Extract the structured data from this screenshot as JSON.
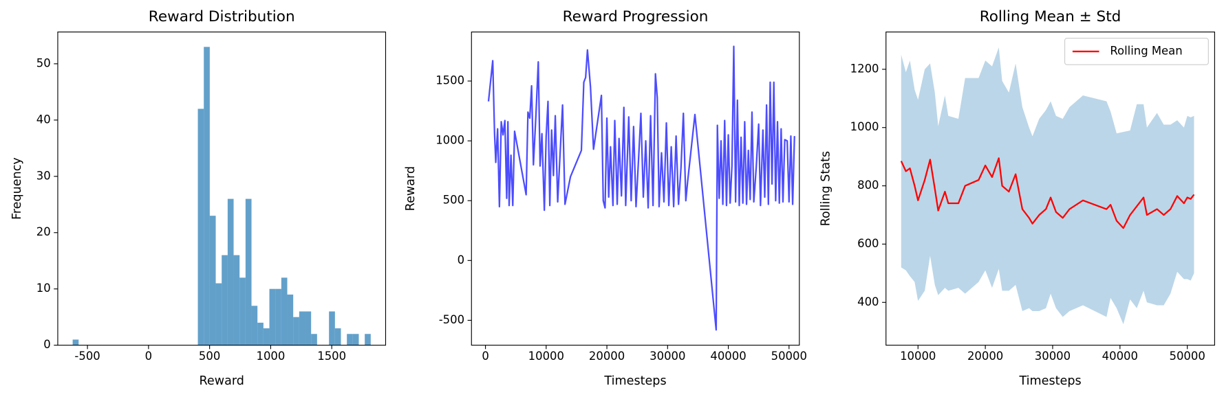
{
  "chart_data": [
    {
      "type": "histogram",
      "title": "Reward Distribution",
      "xlabel": "Reward",
      "ylabel": "Frequency",
      "color": "#1f77b4",
      "bins": [
        -621,
        -572.2,
        -523.4,
        -474.6,
        -425.8,
        -377,
        -328.2,
        -279.4,
        -230.6,
        -181.8,
        -133,
        -84.2,
        -35.4,
        13.4,
        62.2,
        111,
        159.8,
        208.6,
        257.4,
        306.2,
        355,
        403.8,
        452.6,
        501.4,
        550.2,
        599,
        647.8,
        696.6,
        745.4,
        794.2,
        843,
        891.8,
        940.6,
        989.4,
        1038.2,
        1087,
        1135.8,
        1184.6,
        1233.4,
        1282.2,
        1331,
        1379.8,
        1428.6,
        1477.4,
        1526.2,
        1575,
        1623.8,
        1672.6,
        1721.4,
        1770.2,
        1819
      ],
      "values": [
        1,
        0,
        0,
        0,
        0,
        0,
        0,
        0,
        0,
        0,
        0,
        0,
        0,
        0,
        0,
        0,
        0,
        0,
        0,
        0,
        0,
        42,
        53,
        23,
        11,
        16,
        26,
        16,
        12,
        26,
        7,
        4,
        3,
        10,
        10,
        12,
        9,
        5,
        6,
        6,
        2,
        0,
        0,
        6,
        3,
        0,
        2,
        2,
        0,
        2
      ],
      "xlim": [
        -743,
        1941
      ],
      "xticks": [
        -500,
        0,
        500,
        1000,
        1500
      ],
      "ylim": [
        0,
        55.65
      ],
      "yticks": [
        0,
        10,
        20,
        30,
        40,
        50
      ]
    },
    {
      "type": "line",
      "title": "Reward Progression",
      "xlabel": "Timesteps",
      "ylabel": "Reward",
      "color": "#0000ff",
      "x": [
        500,
        1200,
        1500,
        1700,
        2000,
        2300,
        2600,
        2900,
        3200,
        3500,
        3700,
        3900,
        4200,
        4500,
        4800,
        6700,
        7000,
        7300,
        7600,
        7900,
        8300,
        8700,
        9000,
        9300,
        9700,
        10000,
        10300,
        10600,
        10900,
        11200,
        11500,
        11900,
        12300,
        12700,
        13100,
        14000,
        15800,
        16200,
        16500,
        16800,
        17300,
        17800,
        19100,
        19400,
        19700,
        20000,
        20300,
        20600,
        21000,
        21300,
        21700,
        22000,
        22400,
        22800,
        23100,
        23600,
        24000,
        24400,
        24800,
        25200,
        25600,
        26000,
        26400,
        26800,
        27200,
        27600,
        28000,
        28300,
        28600,
        29000,
        29400,
        29800,
        30200,
        30600,
        31000,
        31400,
        31800,
        32200,
        32600,
        33000,
        33300,
        34500,
        38000,
        38200,
        38500,
        38800,
        39100,
        39400,
        39700,
        40000,
        40300,
        40600,
        40900,
        41200,
        41500,
        41800,
        42100,
        42400,
        42700,
        43000,
        43300,
        43600,
        43900,
        44200,
        44600,
        45000,
        45300,
        45700,
        46000,
        46300,
        46600,
        46900,
        47200,
        47500,
        47800,
        48100,
        48400,
        48700,
        49000,
        49300,
        49700,
        50000,
        50300,
        50600,
        50900
      ],
      "values": [
        1330,
        1670,
        1060,
        820,
        1100,
        450,
        1160,
        1050,
        1170,
        520,
        1160,
        460,
        880,
        460,
        1080,
        550,
        1240,
        1190,
        1460,
        800,
        1200,
        1660,
        790,
        1060,
        420,
        1040,
        1330,
        460,
        1090,
        710,
        1210,
        490,
        900,
        1300,
        470,
        700,
        920,
        1490,
        1530,
        1760,
        1450,
        930,
        1380,
        500,
        440,
        1190,
        530,
        950,
        460,
        1170,
        470,
        1020,
        540,
        1280,
        460,
        1200,
        500,
        1120,
        450,
        830,
        1230,
        530,
        1000,
        440,
        1210,
        460,
        1560,
        1360,
        450,
        900,
        490,
        1150,
        460,
        950,
        450,
        1040,
        470,
        770,
        1230,
        500,
        660,
        1220,
        -580,
        1130,
        520,
        1000,
        470,
        1170,
        460,
        1050,
        480,
        790,
        1790,
        490,
        1340,
        460,
        1030,
        480,
        1160,
        470,
        920,
        510,
        1240,
        490,
        780,
        1140,
        460,
        1090,
        530,
        1300,
        470,
        1490,
        640,
        1490,
        500,
        1160,
        480,
        1100,
        490,
        1010,
        1000,
        490,
        1040,
        470,
        1040
      ],
      "xlim": [
        -2300,
        51700
      ],
      "xticks": [
        0,
        10000,
        20000,
        30000,
        40000,
        50000
      ],
      "ylim": [
        -708,
        1910
      ],
      "yticks": [
        -500,
        0,
        500,
        1000,
        1500
      ]
    },
    {
      "type": "line",
      "title": "Rolling Mean ± Std",
      "xlabel": "Timesteps",
      "ylabel": "Rolling Stats",
      "legend": "upper right",
      "x": [
        7500,
        8200,
        8800,
        9500,
        10000,
        11000,
        11800,
        12500,
        13000,
        14000,
        14500,
        16000,
        17000,
        19000,
        20000,
        21000,
        22000,
        22500,
        23500,
        24500,
        25500,
        26500,
        27000,
        28000,
        29000,
        29700,
        30500,
        31500,
        32500,
        34500,
        38000,
        38600,
        39500,
        40500,
        41500,
        42500,
        43500,
        44000,
        45500,
        46500,
        47500,
        48500,
        49500,
        50000,
        50500,
        51000
      ],
      "series": [
        {
          "name": "Rolling Mean",
          "color": "#ff0000",
          "std_color": "#1f77b4",
          "values": [
            885,
            850,
            860,
            800,
            750,
            820,
            890,
            790,
            715,
            780,
            740,
            740,
            800,
            820,
            870,
            830,
            895,
            800,
            780,
            840,
            720,
            690,
            670,
            700,
            720,
            760,
            710,
            690,
            720,
            750,
            720,
            735,
            680,
            655,
            700,
            730,
            760,
            700,
            720,
            700,
            720,
            765,
            740,
            760,
            755,
            770
          ],
          "std": [
            365,
            340,
            370,
            330,
            345,
            380,
            330,
            330,
            290,
            330,
            300,
            290,
            370,
            350,
            360,
            380,
            380,
            360,
            340,
            380,
            350,
            310,
            300,
            330,
            340,
            330,
            330,
            340,
            350,
            360,
            370,
            320,
            300,
            330,
            290,
            350,
            320,
            300,
            330,
            310,
            290,
            260,
            260,
            280,
            280,
            270
          ]
        }
      ],
      "xlim": [
        5246,
        54058
      ],
      "xticks": [
        10000,
        20000,
        30000,
        40000,
        50000
      ],
      "ylim": [
        253,
        1328
      ],
      "yticks": [
        400,
        600,
        800,
        1000,
        1200
      ]
    }
  ]
}
